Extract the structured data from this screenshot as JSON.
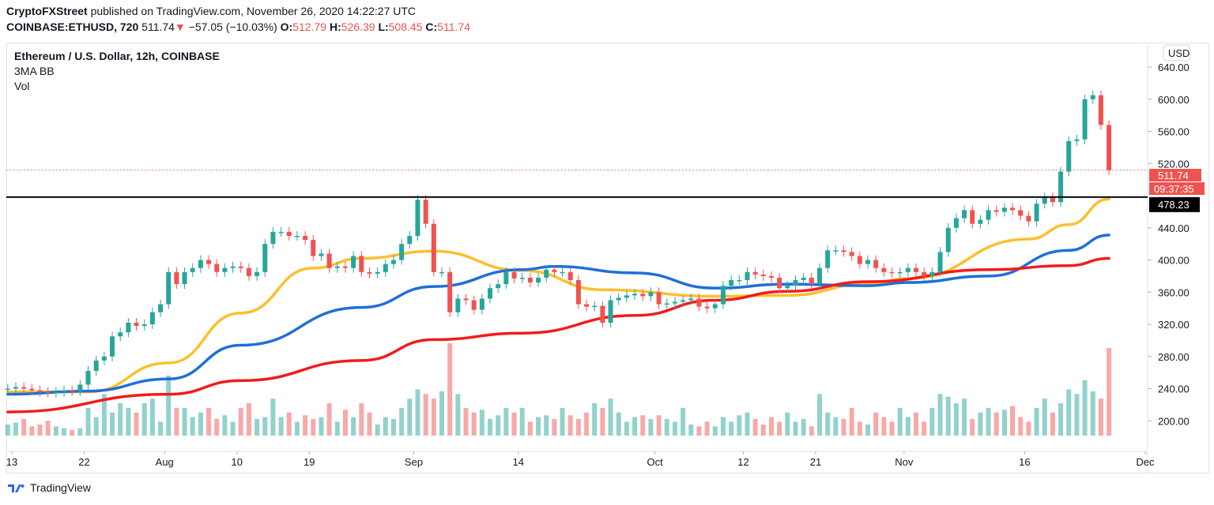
{
  "header": {
    "publisher": "CryptoFXStreet",
    "published_text": "published on TradingView.com, November 26, 2020 14:22:27 UTC",
    "symbol": "COINBASE:ETHUSD, 720",
    "last": "511.74",
    "change_arrow": "▼",
    "change": "−57.05 (−10.03%)",
    "o_label": "O:",
    "o": "512.79",
    "h_label": "H:",
    "h": "526.39",
    "l_label": "L:",
    "l": "508.45",
    "c_label": "C:",
    "c": "511.74"
  },
  "legend": {
    "title": "Ethereum / U.S. Dollar, 12h, COINBASE",
    "indicator1": "3MA BB",
    "indicator2": "Vol"
  },
  "footer": {
    "brand": "TradingView"
  },
  "colors": {
    "up": "#26a69a",
    "down": "#ef5350",
    "ma_yellow": "#fbc02d",
    "ma_blue": "#1e6fd9",
    "ma_red": "#f21b1b",
    "level_line": "#000000"
  },
  "chart_data": {
    "type": "candlestick",
    "currency_label": "USD",
    "y_ticks": [
      "640.00",
      "600.00",
      "560.00",
      "520.00",
      "440.00",
      "400.00",
      "360.00",
      "320.00",
      "280.00",
      "240.00",
      "200.00"
    ],
    "y_tick_values": [
      640,
      600,
      560,
      520,
      440,
      400,
      360,
      320,
      280,
      240,
      200
    ],
    "ylim": [
      170,
      655
    ],
    "x_ticks": [
      {
        "label": "13",
        "date": "2020-07-13"
      },
      {
        "label": "22",
        "date": "2020-07-22"
      },
      {
        "label": "Aug",
        "date": "2020-08-01"
      },
      {
        "label": "10",
        "date": "2020-08-10"
      },
      {
        "label": "19",
        "date": "2020-08-19"
      },
      {
        "label": "Sep",
        "date": "2020-09-01"
      },
      {
        "label": "14",
        "date": "2020-09-14"
      },
      {
        "label": "Oct",
        "date": "2020-10-01"
      },
      {
        "label": "12",
        "date": "2020-10-12"
      },
      {
        "label": "21",
        "date": "2020-10-21"
      },
      {
        "label": "Nov",
        "date": "2020-11-01"
      },
      {
        "label": "16",
        "date": "2020-11-16"
      },
      {
        "label": "Dec",
        "date": "2020-12-01"
      }
    ],
    "start_date": "2020-07-12",
    "closes": [
      240,
      242,
      240,
      238,
      236,
      235,
      236,
      238,
      237,
      245,
      262,
      275,
      280,
      305,
      310,
      322,
      318,
      320,
      335,
      345,
      385,
      370,
      385,
      390,
      400,
      395,
      385,
      390,
      392,
      390,
      380,
      385,
      420,
      435,
      435,
      430,
      430,
      425,
      405,
      408,
      390,
      392,
      390,
      405,
      385,
      383,
      385,
      395,
      400,
      420,
      430,
      475,
      445,
      385,
      385,
      335,
      352,
      350,
      338,
      352,
      365,
      370,
      385,
      377,
      378,
      372,
      378,
      388,
      385,
      385,
      375,
      345,
      342,
      343,
      322,
      350,
      353,
      356,
      358,
      355,
      360,
      345,
      346,
      348,
      350,
      352,
      342,
      340,
      345,
      368,
      375,
      375,
      385,
      382,
      380,
      378,
      365,
      368,
      375,
      378,
      370,
      390,
      412,
      412,
      410,
      405,
      395,
      400,
      390,
      385,
      384,
      385,
      390,
      385,
      380,
      385,
      410,
      440,
      452,
      462,
      445,
      450,
      462,
      460,
      465,
      462,
      455,
      448,
      470,
      478,
      472,
      510,
      548,
      550,
      600,
      605,
      568,
      511.74
    ],
    "volume_relative": [
      12,
      14,
      18,
      10,
      12,
      16,
      10,
      8,
      6,
      8,
      30,
      20,
      45,
      25,
      35,
      30,
      25,
      35,
      40,
      15,
      65,
      30,
      30,
      20,
      25,
      30,
      18,
      22,
      15,
      30,
      35,
      18,
      20,
      40,
      20,
      25,
      15,
      22,
      18,
      20,
      35,
      15,
      28,
      20,
      35,
      25,
      12,
      20,
      18,
      30,
      40,
      50,
      45,
      40,
      48,
      100,
      45,
      30,
      25,
      28,
      18,
      22,
      30,
      25,
      30,
      15,
      20,
      22,
      18,
      30,
      22,
      18,
      25,
      35,
      30,
      40,
      25,
      15,
      20,
      22,
      18,
      22,
      18,
      15,
      30,
      12,
      10,
      15,
      10,
      20,
      15,
      22,
      25,
      18,
      12,
      20,
      15,
      25,
      15,
      18,
      10,
      45,
      25,
      20,
      18,
      30,
      15,
      12,
      25,
      20,
      15,
      30,
      20,
      25,
      15,
      30,
      45,
      42,
      35,
      40,
      18,
      25,
      30,
      25,
      28,
      32,
      20,
      15,
      30,
      40,
      25,
      35,
      50,
      45,
      60,
      48,
      40,
      95
    ],
    "moving_averages": [
      {
        "color": "#fbc02d",
        "points": [
          [
            "2020-07-12",
            236
          ],
          [
            "2020-07-22",
            236
          ],
          [
            "2020-08-01",
            272
          ],
          [
            "2020-08-10",
            334
          ],
          [
            "2020-08-19",
            390
          ],
          [
            "2020-08-25",
            402
          ],
          [
            "2020-09-03",
            411
          ],
          [
            "2020-09-14",
            387
          ],
          [
            "2020-09-24",
            363
          ],
          [
            "2020-10-08",
            355
          ],
          [
            "2020-10-17",
            356
          ],
          [
            "2020-10-27",
            370
          ],
          [
            "2020-11-01",
            377
          ],
          [
            "2020-11-16",
            426
          ],
          [
            "2020-11-21",
            444
          ],
          [
            "2020-11-26",
            476
          ]
        ]
      },
      {
        "color": "#1e6fd9",
        "points": [
          [
            "2020-07-12",
            233
          ],
          [
            "2020-07-22",
            237
          ],
          [
            "2020-08-01",
            252
          ],
          [
            "2020-08-10",
            294
          ],
          [
            "2020-08-25",
            341
          ],
          [
            "2020-09-03",
            367
          ],
          [
            "2020-09-14",
            388
          ],
          [
            "2020-09-18",
            392
          ],
          [
            "2020-09-28",
            384
          ],
          [
            "2020-10-08",
            365
          ],
          [
            "2020-10-17",
            370
          ],
          [
            "2020-10-27",
            368
          ],
          [
            "2020-11-01",
            372
          ],
          [
            "2020-11-11",
            380
          ],
          [
            "2020-11-21",
            412
          ],
          [
            "2020-11-26",
            431
          ]
        ]
      },
      {
        "color": "#f21b1b",
        "points": [
          [
            "2020-07-12",
            211
          ],
          [
            "2020-08-01",
            233
          ],
          [
            "2020-08-10",
            250
          ],
          [
            "2020-08-25",
            275
          ],
          [
            "2020-09-03",
            301
          ],
          [
            "2020-09-14",
            309
          ],
          [
            "2020-09-28",
            331
          ],
          [
            "2020-10-08",
            350
          ],
          [
            "2020-10-17",
            361
          ],
          [
            "2020-10-27",
            373
          ],
          [
            "2020-11-11",
            388
          ],
          [
            "2020-11-21",
            393
          ],
          [
            "2020-11-26",
            402
          ]
        ]
      }
    ],
    "horizontal_level": {
      "value": 478.23,
      "label": "478.23"
    },
    "last_price": {
      "value": 511.74,
      "label": "511.74",
      "countdown": "09:37:35"
    }
  }
}
